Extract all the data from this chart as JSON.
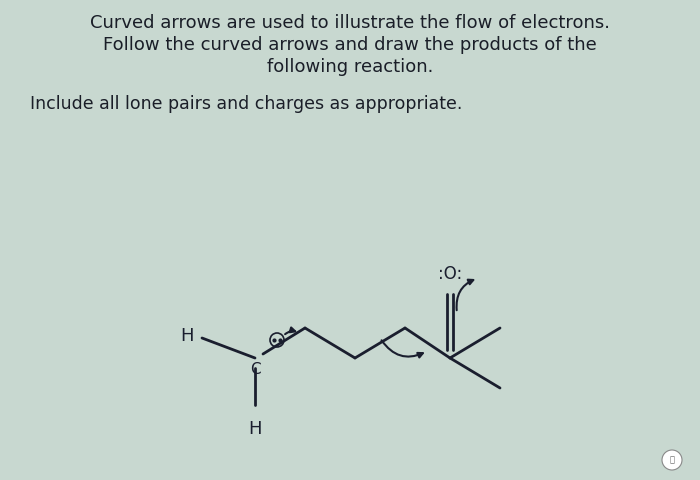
{
  "line1": "Curved arrows are used to illustrate the flow of electrons.",
  "line2": "Follow the curved arrows and draw the products of the",
  "line3": "following reaction.",
  "line4": "Include all lone pairs and charges as appropriate.",
  "bg_color": "#c8d8d0",
  "text_color": "#1a1e28",
  "mol_color": "#1a1e2e",
  "font_size_main": 13.0,
  "font_size_sub": 12.5,
  "mol_lw": 2.0
}
